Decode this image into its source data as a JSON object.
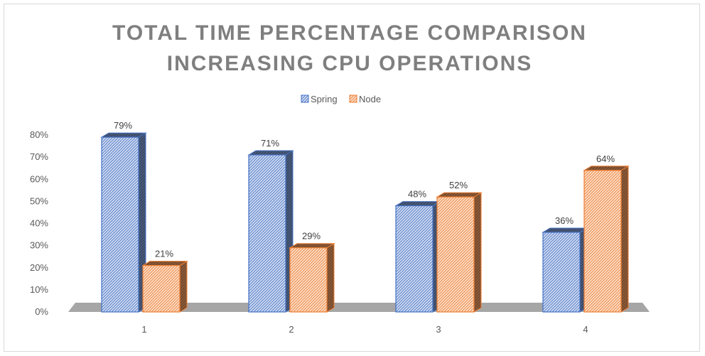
{
  "chart_data": {
    "type": "bar",
    "title_lines": [
      "TOTAL TIME PERCENTAGE COMPARISON",
      "INCREASING CPU OPERATIONS"
    ],
    "categories": [
      "1",
      "2",
      "3",
      "4"
    ],
    "series": [
      {
        "name": "Spring",
        "values": [
          79,
          71,
          48,
          36
        ],
        "labels": [
          "79%",
          "71%",
          "48%",
          "36%"
        ],
        "color": "#4472c4",
        "fill": "#cfdaf0"
      },
      {
        "name": "Node",
        "values": [
          21,
          29,
          52,
          64
        ],
        "labels": [
          "21%",
          "29%",
          "52%",
          "64%"
        ],
        "color": "#ed7d31",
        "fill": "#fbdcc6"
      }
    ],
    "yticks": [
      "0%",
      "10%",
      "20%",
      "30%",
      "40%",
      "50%",
      "60%",
      "70%",
      "80%"
    ],
    "ylim": [
      0,
      80
    ],
    "xlabel": "",
    "ylabel": "",
    "legend_position": "top-center",
    "grid": false,
    "floor_color": "#a6a6a6",
    "title_color": "#7f7f7f"
  }
}
